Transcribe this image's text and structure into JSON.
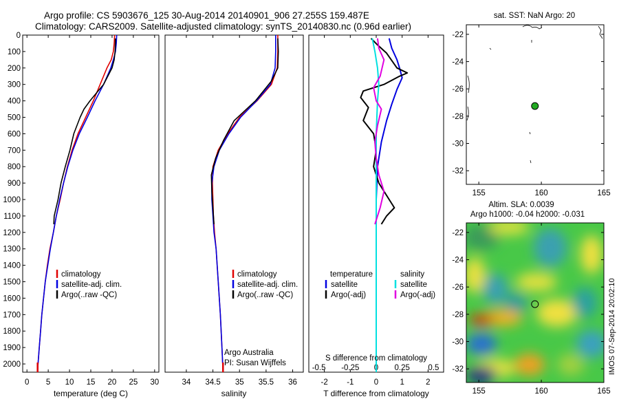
{
  "header": {
    "line1": "Argo profile: CS 5903676_125 30-Aug-2014 20140901_906 27.255S 159.487E",
    "line2": "Climatology: CARS2009. Satellite-adjusted climatology: synTS_20140830.nc (0.96d earlier)"
  },
  "side_stamp": "IMOS 07-Sep-2014 20:02:10",
  "colors": {
    "climatology": "#e00000",
    "satellite": "#0000e0",
    "argo": "#000000",
    "satellite_salinity": "#00e0e0",
    "argo_salinity": "#e000e0",
    "marker": "#22aa22"
  },
  "chart_data": [
    {
      "type": "line",
      "id": "temperature",
      "xlabel": "temperature (deg C)",
      "ylabel": "",
      "xlim": [
        -1,
        31
      ],
      "ylim": [
        2050,
        0
      ],
      "xticks": [
        0,
        5,
        10,
        15,
        20,
        25,
        30
      ],
      "yticks": [
        0,
        100,
        200,
        300,
        400,
        500,
        600,
        700,
        800,
        900,
        1000,
        1100,
        1200,
        1300,
        1400,
        1500,
        1600,
        1700,
        1800,
        1900,
        2000
      ],
      "legend": [
        "climatology",
        "satellite-adj. clim.",
        "Argo(..raw -QC)"
      ],
      "series": [
        {
          "name": "climatology",
          "color": "#e00000",
          "points": [
            [
              20.6,
              0
            ],
            [
              20.5,
              50
            ],
            [
              20.3,
              100
            ],
            [
              19.8,
              150
            ],
            [
              18.8,
              200
            ],
            [
              17.2,
              300
            ],
            [
              15.6,
              400
            ],
            [
              13.8,
              500
            ],
            [
              12.0,
              600
            ],
            [
              10.6,
              700
            ],
            [
              9.5,
              800
            ],
            [
              8.6,
              900
            ],
            [
              7.8,
              1000
            ],
            [
              6.9,
              1100
            ],
            [
              6.2,
              1200
            ],
            [
              5.4,
              1300
            ],
            [
              4.8,
              1400
            ],
            [
              4.3,
              1500
            ],
            [
              3.9,
              1600
            ],
            [
              3.5,
              1700
            ],
            [
              3.2,
              1800
            ],
            [
              2.9,
              1900
            ],
            [
              2.6,
              2000
            ],
            [
              2.5,
              2050
            ]
          ]
        },
        {
          "name": "satellite-adj. clim.",
          "color": "#0000e0",
          "points": [
            [
              21.1,
              0
            ],
            [
              21.0,
              50
            ],
            [
              20.8,
              100
            ],
            [
              20.3,
              150
            ],
            [
              19.7,
              200
            ],
            [
              18.0,
              300
            ],
            [
              16.0,
              400
            ],
            [
              14.2,
              500
            ],
            [
              12.3,
              600
            ],
            [
              10.8,
              700
            ],
            [
              9.6,
              800
            ],
            [
              8.6,
              900
            ],
            [
              7.7,
              1000
            ],
            [
              6.9,
              1100
            ],
            [
              6.2,
              1200
            ],
            [
              5.5,
              1300
            ],
            [
              4.9,
              1400
            ],
            [
              4.3,
              1500
            ],
            [
              3.9,
              1600
            ],
            [
              3.5,
              1700
            ],
            [
              3.2,
              1800
            ],
            [
              2.9,
              1900
            ],
            [
              2.6,
              2000
            ],
            [
              2.5,
              2050
            ]
          ]
        },
        {
          "name": "Argo(..raw -QC)",
          "color": "#000000",
          "points": [
            [
              20.8,
              20
            ],
            [
              20.7,
              100
            ],
            [
              20.5,
              150
            ],
            [
              20.0,
              200
            ],
            [
              18.0,
              300
            ],
            [
              14.8,
              400
            ],
            [
              13.4,
              450
            ],
            [
              12.5,
              500
            ],
            [
              11.0,
              600
            ],
            [
              10.1,
              700
            ],
            [
              9.0,
              800
            ],
            [
              8.0,
              900
            ],
            [
              7.3,
              1000
            ],
            [
              6.4,
              1100
            ],
            [
              6.3,
              1150
            ]
          ]
        }
      ]
    },
    {
      "type": "line",
      "id": "salinity",
      "xlabel": "salinity",
      "xlim": [
        33.6,
        36.2
      ],
      "ylim": [
        2050,
        0
      ],
      "xticks": [
        34,
        34.5,
        35,
        35.5,
        36
      ],
      "legend": [
        "climatology",
        "satellite-adj. clim.",
        "Argo(..raw -QC)"
      ],
      "annotation": [
        "Argo Australia",
        "PI: Susan Wijffels"
      ],
      "series": [
        {
          "name": "climatology",
          "color": "#e00000",
          "points": [
            [
              35.72,
              0
            ],
            [
              35.72,
              100
            ],
            [
              35.71,
              200
            ],
            [
              35.6,
              300
            ],
            [
              35.33,
              400
            ],
            [
              35.0,
              500
            ],
            [
              34.78,
              600
            ],
            [
              34.6,
              700
            ],
            [
              34.5,
              800
            ],
            [
              34.49,
              900
            ],
            [
              34.5,
              1000
            ],
            [
              34.51,
              1100
            ],
            [
              34.53,
              1200
            ],
            [
              34.56,
              1300
            ],
            [
              34.6,
              1500
            ],
            [
              34.64,
              1700
            ],
            [
              34.67,
              1900
            ],
            [
              34.69,
              2050
            ]
          ]
        },
        {
          "name": "satellite-adj. clim.",
          "color": "#0000e0",
          "points": [
            [
              35.68,
              0
            ],
            [
              35.68,
              100
            ],
            [
              35.67,
              200
            ],
            [
              35.58,
              300
            ],
            [
              35.32,
              400
            ],
            [
              35.02,
              500
            ],
            [
              34.8,
              600
            ],
            [
              34.62,
              700
            ],
            [
              34.52,
              800
            ],
            [
              34.48,
              900
            ],
            [
              34.48,
              1000
            ],
            [
              34.5,
              1100
            ],
            [
              34.52,
              1200
            ],
            [
              34.56,
              1300
            ],
            [
              34.6,
              1500
            ],
            [
              34.64,
              1700
            ],
            [
              34.67,
              1900
            ],
            [
              34.69,
              2050
            ]
          ]
        },
        {
          "name": "Argo(..raw -QC)",
          "color": "#000000",
          "points": [
            [
              35.72,
              20
            ],
            [
              35.73,
              100
            ],
            [
              35.72,
              200
            ],
            [
              35.6,
              280
            ],
            [
              35.3,
              400
            ],
            [
              34.9,
              520
            ],
            [
              34.7,
              640
            ],
            [
              34.55,
              750
            ],
            [
              34.47,
              850
            ],
            [
              34.48,
              950
            ],
            [
              34.5,
              1050
            ],
            [
              34.52,
              1150
            ]
          ]
        }
      ]
    },
    {
      "type": "line",
      "id": "differences",
      "xlabel": "T difference from climatology",
      "xlabel_top": "S difference from climatology",
      "xlim": [
        -2.6,
        2.6
      ],
      "ylim": [
        2050,
        0
      ],
      "xticks": [
        -2,
        -1,
        0,
        1,
        2
      ],
      "xticks_s": [
        "-0.5",
        "-0.25",
        "0",
        "0.25",
        "0.5"
      ],
      "legend_headers": [
        "temperature",
        "salinity"
      ],
      "legend": [
        "satellite",
        "Argo(-adj)",
        "satellite",
        "Argo(-adj)"
      ],
      "series": [
        {
          "name": "satellite",
          "color": "#0000e0",
          "points": [
            [
              0.5,
              20
            ],
            [
              0.6,
              80
            ],
            [
              0.8,
              150
            ],
            [
              0.9,
              200
            ],
            [
              1.0,
              260
            ],
            [
              0.8,
              330
            ],
            [
              0.6,
              420
            ],
            [
              0.4,
              520
            ],
            [
              0.2,
              650
            ],
            [
              0.05,
              800
            ],
            [
              0.0,
              1000
            ],
            [
              0.0,
              2050
            ]
          ]
        },
        {
          "name": "Argo(-adj)",
          "color": "#000000",
          "points": [
            [
              -0.2,
              20
            ],
            [
              0.05,
              60
            ],
            [
              0.4,
              110
            ],
            [
              0.8,
              200
            ],
            [
              1.2,
              230
            ],
            [
              0.9,
              250
            ],
            [
              0.3,
              300
            ],
            [
              -0.5,
              340
            ],
            [
              -0.6,
              380
            ],
            [
              -0.3,
              440
            ],
            [
              -0.5,
              520
            ],
            [
              -0.1,
              600
            ],
            [
              0.0,
              700
            ],
            [
              -0.1,
              800
            ],
            [
              0.1,
              900
            ],
            [
              0.5,
              1000
            ],
            [
              0.7,
              1050
            ],
            [
              0.4,
              1100
            ],
            [
              0.2,
              1150
            ]
          ]
        },
        {
          "name": "satellite",
          "color": "#00e0e0",
          "points": [
            [
              -0.15,
              20
            ],
            [
              -0.05,
              100
            ],
            [
              0.05,
              200
            ],
            [
              0.1,
              300
            ],
            [
              0.05,
              400
            ],
            [
              0.0,
              600
            ],
            [
              0.0,
              1000
            ],
            [
              0.0,
              2050
            ]
          ]
        },
        {
          "name": "Argo(-adj)",
          "color": "#e000e0",
          "points": [
            [
              0.05,
              20
            ],
            [
              0.1,
              80
            ],
            [
              0.3,
              150
            ],
            [
              0.15,
              250
            ],
            [
              -0.1,
              320
            ],
            [
              0.0,
              400
            ],
            [
              0.2,
              450
            ],
            [
              0.05,
              550
            ],
            [
              -0.05,
              650
            ],
            [
              0.0,
              750
            ],
            [
              0.1,
              850
            ],
            [
              0.3,
              950
            ],
            [
              0.15,
              1050
            ],
            [
              -0.05,
              1150
            ]
          ]
        }
      ]
    },
    {
      "type": "scatter",
      "id": "sst_map",
      "title": "sat. SST: NaN Argo: 20",
      "xlim": [
        154,
        165
      ],
      "ylim": [
        -33,
        -21.3
      ],
      "xticks": [
        155,
        160,
        165
      ],
      "yticks": [
        -22,
        -24,
        -26,
        -28,
        -30,
        -32
      ],
      "points": [
        [
          159.487,
          -27.255
        ]
      ]
    },
    {
      "type": "heatmap",
      "id": "sla_map",
      "title_lines": [
        "Altim. SLA: 0.0039",
        "Argo h1000: -0.04 h2000: -0.031"
      ],
      "xlim": [
        154,
        165
      ],
      "ylim": [
        -33,
        -21.3
      ],
      "xticks": [
        155,
        160,
        165
      ],
      "yticks": [
        -22,
        -24,
        -26,
        -28,
        -30,
        -32
      ],
      "points": [
        [
          159.487,
          -27.255
        ]
      ]
    }
  ]
}
